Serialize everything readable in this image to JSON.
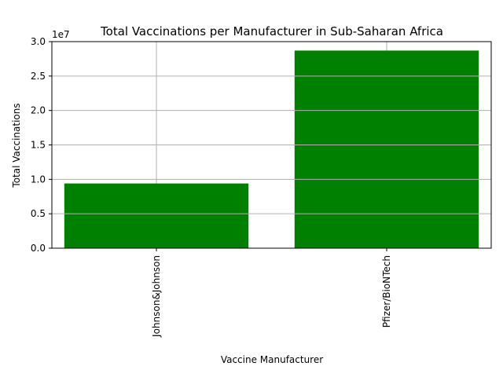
{
  "chart_data": {
    "type": "bar",
    "title": "Total Vaccinations per Manufacturer in Sub-Saharan Africa",
    "xlabel": "Vaccine Manufacturer",
    "ylabel": "Total Vaccinations",
    "y_offset_label": "1e7",
    "categories": [
      "Johnson&Johnson",
      "Pfizer/BioNTech"
    ],
    "values": [
      9400000,
      28700000
    ],
    "ylim": [
      0,
      30000000
    ],
    "yticks": [
      0,
      5000000,
      10000000,
      15000000,
      20000000,
      25000000,
      30000000
    ],
    "ytick_labels": [
      "0.0",
      "0.5",
      "1.0",
      "1.5",
      "2.0",
      "2.5",
      "3.0"
    ],
    "grid": true,
    "bar_color": "#008000"
  }
}
